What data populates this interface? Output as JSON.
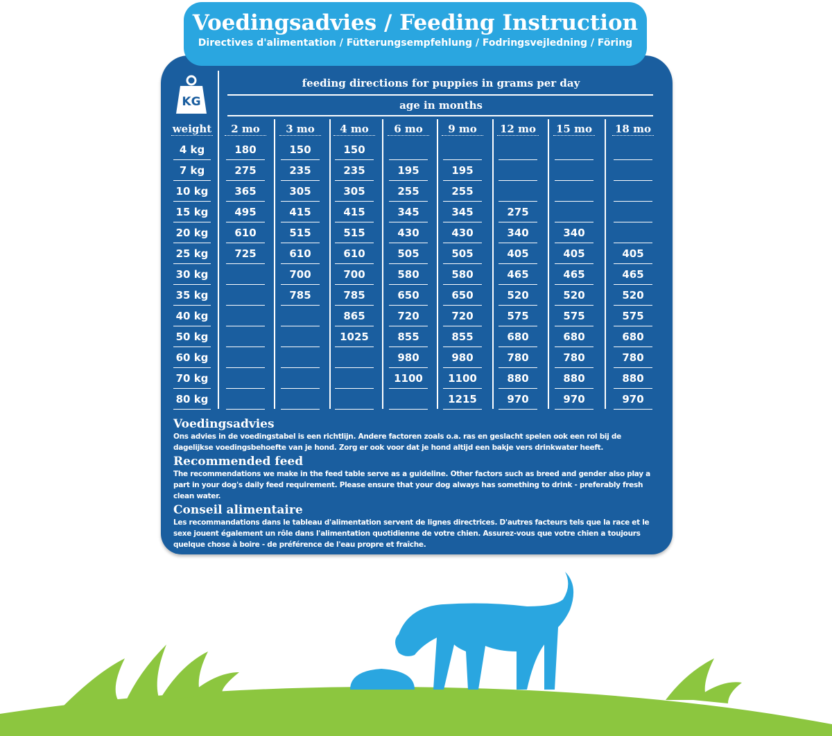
{
  "header": {
    "title": "Voedingsadvies / Feeding Instruction",
    "subtitle": "Directives d'alimentation / Fütterungsempfehlung / Fodringsvejledning / Föring"
  },
  "kg_icon": {
    "label": "KG"
  },
  "table": {
    "caption": "feeding directions for puppies in grams per day",
    "subcaption": "age in months",
    "weight_header": "weight",
    "columns": [
      "2 mo",
      "3 mo",
      "4 mo",
      "6 mo",
      "9 mo",
      "12 mo",
      "15 mo",
      "18 mo"
    ],
    "rows": [
      {
        "weight": "4 kg",
        "values": [
          "180",
          "150",
          "150",
          "",
          "",
          "",
          "",
          ""
        ]
      },
      {
        "weight": "7 kg",
        "values": [
          "275",
          "235",
          "235",
          "195",
          "195",
          "",
          "",
          ""
        ]
      },
      {
        "weight": "10 kg",
        "values": [
          "365",
          "305",
          "305",
          "255",
          "255",
          "",
          "",
          ""
        ]
      },
      {
        "weight": "15 kg",
        "values": [
          "495",
          "415",
          "415",
          "345",
          "345",
          "275",
          "",
          ""
        ]
      },
      {
        "weight": "20 kg",
        "values": [
          "610",
          "515",
          "515",
          "430",
          "430",
          "340",
          "340",
          ""
        ]
      },
      {
        "weight": "25 kg",
        "values": [
          "725",
          "610",
          "610",
          "505",
          "505",
          "405",
          "405",
          "405"
        ]
      },
      {
        "weight": "30 kg",
        "values": [
          "",
          "700",
          "700",
          "580",
          "580",
          "465",
          "465",
          "465"
        ]
      },
      {
        "weight": "35 kg",
        "values": [
          "",
          "785",
          "785",
          "650",
          "650",
          "520",
          "520",
          "520"
        ]
      },
      {
        "weight": "40 kg",
        "values": [
          "",
          "",
          "865",
          "720",
          "720",
          "575",
          "575",
          "575"
        ]
      },
      {
        "weight": "50 kg",
        "values": [
          "",
          "",
          "1025",
          "855",
          "855",
          "680",
          "680",
          "680"
        ]
      },
      {
        "weight": "60 kg",
        "values": [
          "",
          "",
          "",
          "980",
          "980",
          "780",
          "780",
          "780"
        ]
      },
      {
        "weight": "70 kg",
        "values": [
          "",
          "",
          "",
          "1100",
          "1100",
          "880",
          "880",
          "880"
        ]
      },
      {
        "weight": "80 kg",
        "values": [
          "",
          "",
          "",
          "",
          "1215",
          "970",
          "970",
          "970"
        ]
      }
    ]
  },
  "notes": [
    {
      "title": "Voedingsadvies",
      "text": "Ons advies in de voedingstabel is een richtlijn. Andere factoren zoals o.a. ras en geslacht spelen ook een rol bij de dagelijkse voedingsbehoefte van je hond. Zorg er ook voor dat je hond altijd een bakje vers drinkwater heeft."
    },
    {
      "title": "Recommended feed",
      "text": "The recommendations we make in the feed table serve as a guideline. Other factors such as breed and gender also play a part in your dog's daily feed requirement. Please ensure that your dog always has something to drink - preferably fresh clean water."
    },
    {
      "title": "Conseil alimentaire",
      "text": "Les recommandations dans le tableau d'alimentation servent de lignes directrices. D'autres facteurs tels que la race et le sexe jouent également un rôle dans l'alimentation quotidienne de votre chien. Assurez-vous que votre chien a toujours quelque chose à boire - de préférence de l'eau propre et fraîche."
    }
  ],
  "colors": {
    "panel": "#1a5e9f",
    "tab": "#2aa6e0",
    "dog": "#2aa6e0",
    "grass": "#8cc63f"
  }
}
